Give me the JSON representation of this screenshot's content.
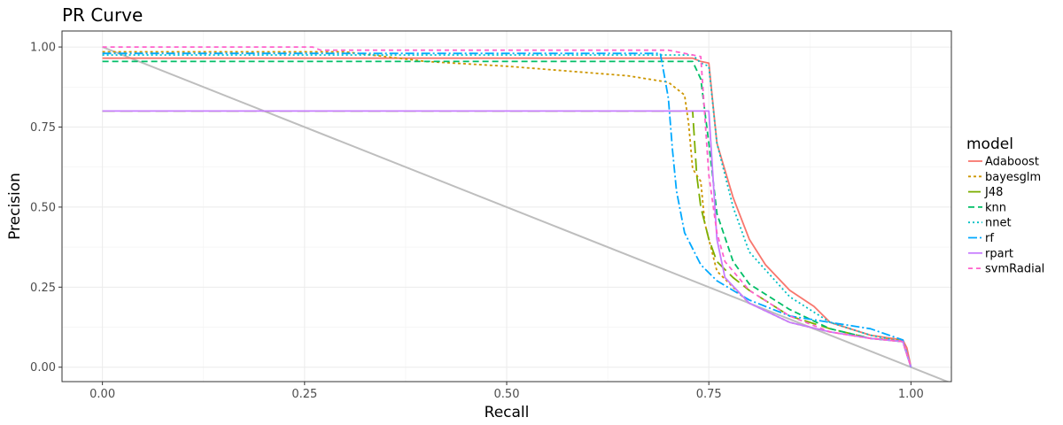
{
  "chart_data": {
    "type": "line",
    "title": "PR Curve",
    "xlabel": "Recall",
    "ylabel": "Precision",
    "xlim": [
      -0.05,
      1.05
    ],
    "ylim": [
      -0.045,
      1.05
    ],
    "x_ticks": [
      "0.00",
      "0.25",
      "0.50",
      "0.75",
      "1.00"
    ],
    "y_ticks": [
      "0.00",
      "0.25",
      "0.50",
      "0.75",
      "1.00"
    ],
    "grid": true,
    "legend": {
      "title": "model",
      "position": "right"
    },
    "reference_line": {
      "x": [
        0,
        1.05
      ],
      "y": [
        1.0,
        -0.05
      ],
      "color": "#bebebe"
    },
    "series": [
      {
        "name": "Adaboost",
        "color": "#F8766D",
        "dash": "",
        "x": [
          0,
          0.73,
          0.74,
          0.75,
          0.76,
          0.78,
          0.8,
          0.82,
          0.85,
          0.88,
          0.9,
          0.95,
          0.99,
          0.995,
          1.0
        ],
        "y": [
          0.965,
          0.965,
          0.955,
          0.95,
          0.7,
          0.53,
          0.4,
          0.32,
          0.24,
          0.19,
          0.14,
          0.1,
          0.085,
          0.06,
          0.0
        ]
      },
      {
        "name": "bayesglm",
        "color": "#CD9600",
        "dash": "3,3",
        "x": [
          0,
          0.3,
          0.4,
          0.5,
          0.6,
          0.65,
          0.7,
          0.72,
          0.725,
          0.73,
          0.74,
          0.745,
          0.76,
          0.8,
          0.85,
          0.9,
          0.95,
          0.99,
          1.0
        ],
        "y": [
          0.985,
          0.985,
          0.955,
          0.94,
          0.92,
          0.91,
          0.89,
          0.85,
          0.76,
          0.62,
          0.58,
          0.45,
          0.3,
          0.2,
          0.14,
          0.11,
          0.09,
          0.085,
          0.0
        ]
      },
      {
        "name": "J48",
        "color": "#7CAE00",
        "dash": "14,6",
        "x": [
          0,
          0.72,
          0.73,
          0.735,
          0.74,
          0.75,
          0.76,
          0.78,
          0.8,
          0.85,
          0.9,
          0.95,
          0.99,
          1.0
        ],
        "y": [
          0.8,
          0.8,
          0.8,
          0.6,
          0.5,
          0.4,
          0.33,
          0.28,
          0.24,
          0.16,
          0.12,
          0.09,
          0.08,
          0.0
        ]
      },
      {
        "name": "knn",
        "color": "#00BE67",
        "dash": "7,4",
        "x": [
          0,
          0.73,
          0.74,
          0.75,
          0.76,
          0.78,
          0.8,
          0.85,
          0.9,
          0.95,
          0.99,
          1.0
        ],
        "y": [
          0.955,
          0.955,
          0.9,
          0.7,
          0.48,
          0.33,
          0.26,
          0.18,
          0.12,
          0.09,
          0.08,
          0.0
        ]
      },
      {
        "name": "nnet",
        "color": "#00BFC4",
        "dash": "2,3",
        "x": [
          0,
          0.73,
          0.74,
          0.75,
          0.76,
          0.78,
          0.8,
          0.85,
          0.9,
          0.95,
          0.99,
          1.0
        ],
        "y": [
          0.975,
          0.975,
          0.95,
          0.94,
          0.7,
          0.5,
          0.36,
          0.22,
          0.14,
          0.1,
          0.08,
          0.0
        ]
      },
      {
        "name": "rf",
        "color": "#00A9FF",
        "dash": "10,3,2,3",
        "x": [
          0,
          0.69,
          0.695,
          0.7,
          0.705,
          0.71,
          0.72,
          0.74,
          0.76,
          0.8,
          0.85,
          0.9,
          0.95,
          0.99,
          1.0
        ],
        "y": [
          0.98,
          0.98,
          0.91,
          0.84,
          0.68,
          0.55,
          0.42,
          0.32,
          0.27,
          0.21,
          0.16,
          0.14,
          0.12,
          0.085,
          0.0
        ]
      },
      {
        "name": "rpart",
        "color": "#C77CFF",
        "dash": "",
        "x": [
          0,
          0.75,
          0.76,
          0.77,
          0.8,
          0.85,
          0.9,
          0.95,
          0.99,
          1.0
        ],
        "y": [
          0.8,
          0.8,
          0.4,
          0.28,
          0.2,
          0.14,
          0.11,
          0.09,
          0.08,
          0.0
        ]
      },
      {
        "name": "svmRadial",
        "color": "#FF61CC",
        "dash": "5,4",
        "x": [
          0,
          0.26,
          0.27,
          0.5,
          0.68,
          0.7,
          0.72,
          0.74,
          0.75,
          0.76,
          0.77,
          0.8,
          0.85,
          0.9,
          0.95,
          0.99,
          1.0
        ],
        "y": [
          1.0,
          1.0,
          0.99,
          0.99,
          0.99,
          0.99,
          0.98,
          0.97,
          0.6,
          0.42,
          0.33,
          0.24,
          0.16,
          0.11,
          0.09,
          0.08,
          0.0
        ]
      }
    ]
  }
}
